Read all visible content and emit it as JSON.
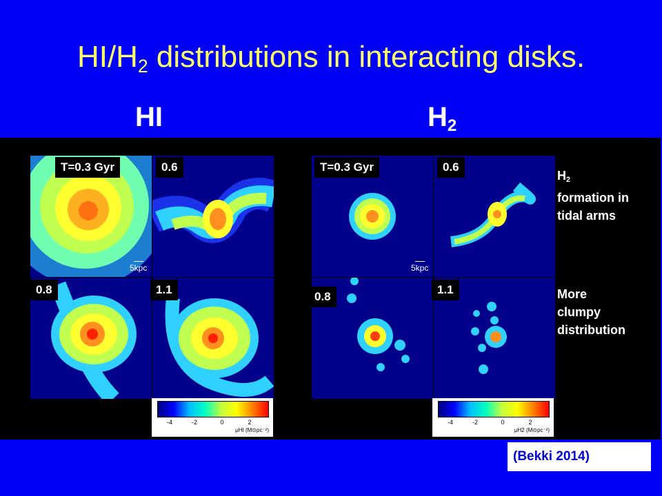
{
  "title": {
    "main": "HI/H",
    "sub": "2",
    "rest": " distributions in interacting disks."
  },
  "headings": {
    "hi": "HI",
    "h2_main": "H",
    "h2_sub": "2"
  },
  "panels": {
    "t1": "T=0.3 Gyr",
    "t2": "0.6",
    "t3": "0.8",
    "t4": "1.1",
    "scale": "5kpc"
  },
  "colorbar": {
    "ticks": [
      "-4",
      "-2",
      "0",
      "2"
    ],
    "hi_unit": "μHI (M⊙pc⁻²)",
    "h2_unit": "μH2 (M⊙pc⁻²)",
    "colors": [
      "#00007f",
      "#0000ff",
      "#00bfff",
      "#00ffc0",
      "#c0ff40",
      "#ffff00",
      "#ff8000",
      "#ff0000"
    ]
  },
  "notes": {
    "note1_main": "H",
    "note1_sub": "2",
    "note1_line2": "formation in",
    "note1_line3": "tidal arms",
    "note2_line1": "More",
    "note2_line2": "clumpy",
    "note2_line3": "distribution"
  },
  "reference": "(Bekki 2014)",
  "colors": {
    "background": "#0000f5",
    "title": "#ffff66",
    "panel": "#000000",
    "sim_bg": "#00008b"
  }
}
